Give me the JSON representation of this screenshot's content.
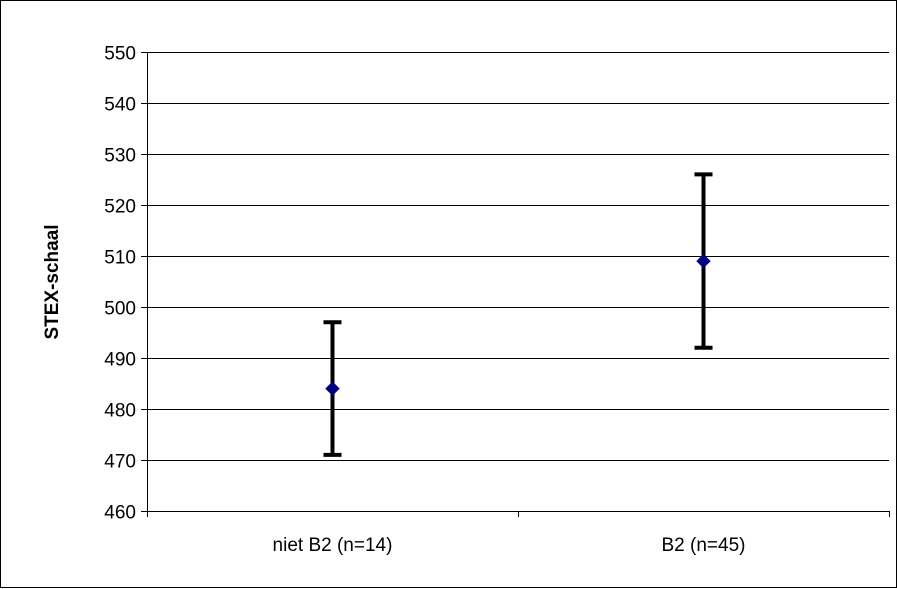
{
  "chart_data": {
    "type": "scatter",
    "title": "",
    "xlabel": "",
    "ylabel": "STEX-schaal",
    "ylim": [
      460,
      550
    ],
    "yticks": [
      460,
      470,
      480,
      490,
      500,
      510,
      520,
      530,
      540,
      550
    ],
    "categories": [
      "niet B2 (n=14)",
      "B2 (n=45)"
    ],
    "series": [
      {
        "values": [
          484,
          509
        ],
        "error_low": [
          471,
          492
        ],
        "error_high": [
          497,
          526
        ]
      }
    ],
    "grid": "horizontal",
    "legend": "none",
    "colors": {
      "marker": "#000080",
      "errorbar": "#000000",
      "grid": "#000000"
    }
  }
}
